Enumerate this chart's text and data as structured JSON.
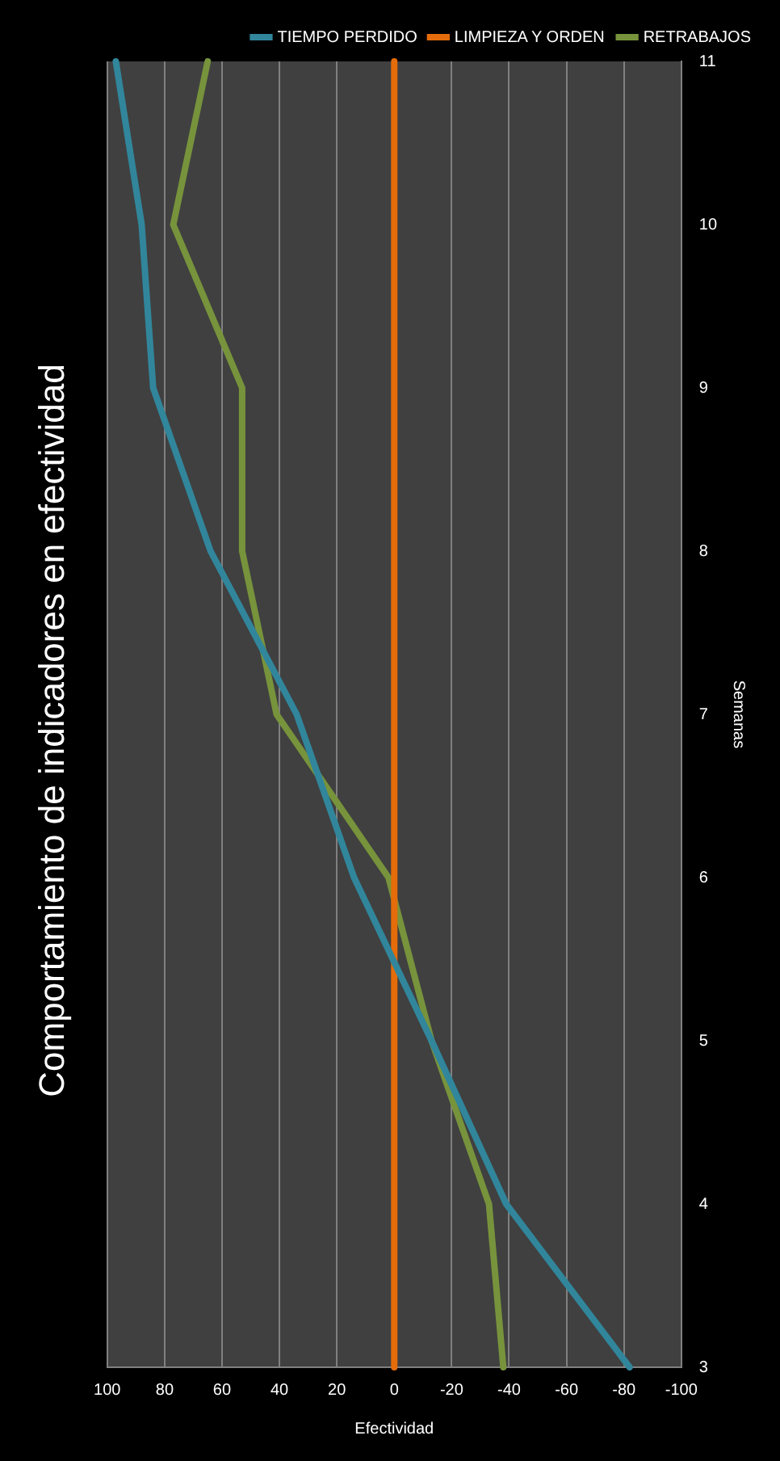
{
  "chart_data": {
    "type": "line",
    "orientation": "horizontal",
    "title": "Comportamiento de indicadores en efectividad",
    "xlabel": "Efectividad",
    "ylabel": "Semanas",
    "categories": [
      "11",
      "10",
      "9",
      "8",
      "7",
      "6",
      "5",
      "4",
      "3"
    ],
    "series": [
      {
        "name": "TIEMPO PERDIDO",
        "color": "#31869b",
        "values": [
          97,
          88,
          84,
          64,
          34,
          14,
          -13,
          -39,
          -82
        ]
      },
      {
        "name": "LIMPIEZA Y ORDEN",
        "color": "#e46c0a",
        "values": [
          0,
          0,
          0,
          0,
          0,
          0,
          0,
          0,
          0
        ]
      },
      {
        "name": "RETRABAJOS",
        "color": "#77933c",
        "values": [
          65,
          77,
          53,
          53,
          41,
          2,
          -13,
          -33,
          -38
        ]
      }
    ],
    "xlim": [
      100,
      -100
    ],
    "xticks": [
      100,
      80,
      60,
      40,
      20,
      0,
      -20,
      -40,
      -60,
      -80,
      -100
    ],
    "grid": "x",
    "legend": "top right",
    "marker": "none"
  }
}
